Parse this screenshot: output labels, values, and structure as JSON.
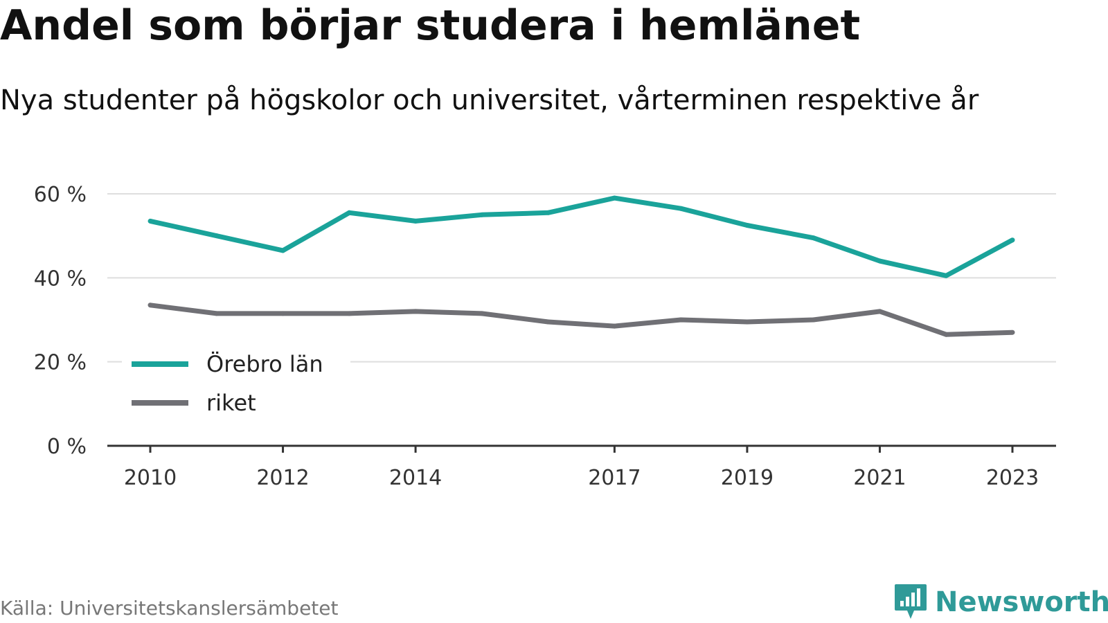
{
  "title": "Andel som börjar studera i hemlänet",
  "subtitle": "Nya studenter på högskolor och universitet, vårterminen respektive år",
  "source": "Källa: Universitetskanslersämbetet",
  "brand": {
    "name": "Newsworthy",
    "icon": "newsworthy-logo-icon",
    "color": "#2f9a98"
  },
  "chart_data": {
    "type": "line",
    "x": [
      2010,
      2011,
      2012,
      2013,
      2014,
      2015,
      2016,
      2017,
      2018,
      2019,
      2020,
      2021,
      2022,
      2023
    ],
    "x_tick_labels": [
      "2010",
      "2012",
      "2014",
      "2017",
      "2019",
      "2021",
      "2023"
    ],
    "x_tick_values": [
      2010,
      2012,
      2014,
      2017,
      2019,
      2021,
      2023
    ],
    "y_tick_labels": [
      "0 %",
      "20 %",
      "40 %",
      "60 %"
    ],
    "y_tick_values": [
      0,
      20,
      40,
      60
    ],
    "ylim": [
      0,
      60
    ],
    "grid": true,
    "legend_position": "bottom-left",
    "series": [
      {
        "name": "Örebro län",
        "color": "#1aa39a",
        "values": [
          53.5,
          50,
          46.5,
          55.5,
          53.5,
          55,
          55.5,
          59,
          56.5,
          52.5,
          49.5,
          44,
          40.5,
          49
        ]
      },
      {
        "name": "riket",
        "color": "#707075",
        "values": [
          33.5,
          31.5,
          31.5,
          31.5,
          32,
          31.5,
          29.5,
          28.5,
          30,
          29.5,
          30,
          32,
          26.5,
          27
        ]
      }
    ]
  }
}
